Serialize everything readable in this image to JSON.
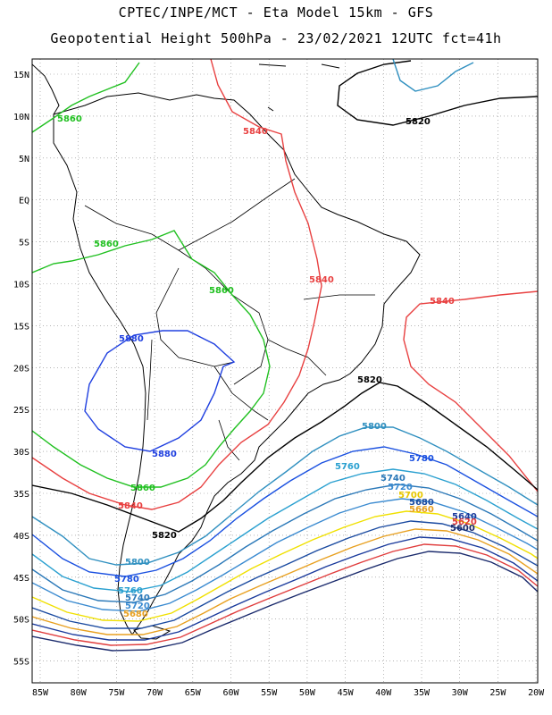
{
  "title_line1": "CPTEC/INPE/MCT -  Eta Model 15km - GFS",
  "title_line2": "Geopotential Height 500hPa - 23/02/2021 12UTC fct=41h",
  "lat_ticks": [
    "15N",
    "10N",
    "5N",
    "EQ",
    "5S",
    "10S",
    "15S",
    "20S",
    "25S",
    "30S",
    "35S",
    "40S",
    "45S",
    "50S",
    "55S"
  ],
  "lon_ticks": [
    "85W",
    "80W",
    "75W",
    "70W",
    "65W",
    "60W",
    "55W",
    "50W",
    "45W",
    "40W",
    "35W",
    "30W",
    "25W",
    "20W"
  ],
  "contours": [
    {
      "value": 5600,
      "label": "5600",
      "color": "#1a2a6c"
    },
    {
      "value": 5620,
      "label": "5620",
      "color": "#e03c3c"
    },
    {
      "value": 5640,
      "label": "5640",
      "color": "#1a3a9c"
    },
    {
      "value": 5660,
      "label": "5660",
      "color": "#e8a020"
    },
    {
      "value": 5680,
      "label": "5680",
      "color": "#1a4aa0"
    },
    {
      "value": 5700,
      "label": "5700",
      "color": "#f0e000"
    },
    {
      "value": 5720,
      "label": "5720",
      "color": "#3a8ad0"
    },
    {
      "value": 5740,
      "label": "5740",
      "color": "#2a78b8"
    },
    {
      "value": 5760,
      "label": "5760",
      "color": "#2aa0d0"
    },
    {
      "value": 5780,
      "label": "5780",
      "color": "#1a50e0"
    },
    {
      "value": 5800,
      "label": "5800",
      "color": "#3090c0"
    },
    {
      "value": 5820,
      "label": "5820",
      "color": "#000000"
    },
    {
      "value": 5840,
      "label": "5840",
      "color": "#e84040"
    },
    {
      "value": 5860,
      "label": "5860",
      "color": "#20c020"
    },
    {
      "value": 5880,
      "label": "5880",
      "color": "#2040e0"
    }
  ]
}
